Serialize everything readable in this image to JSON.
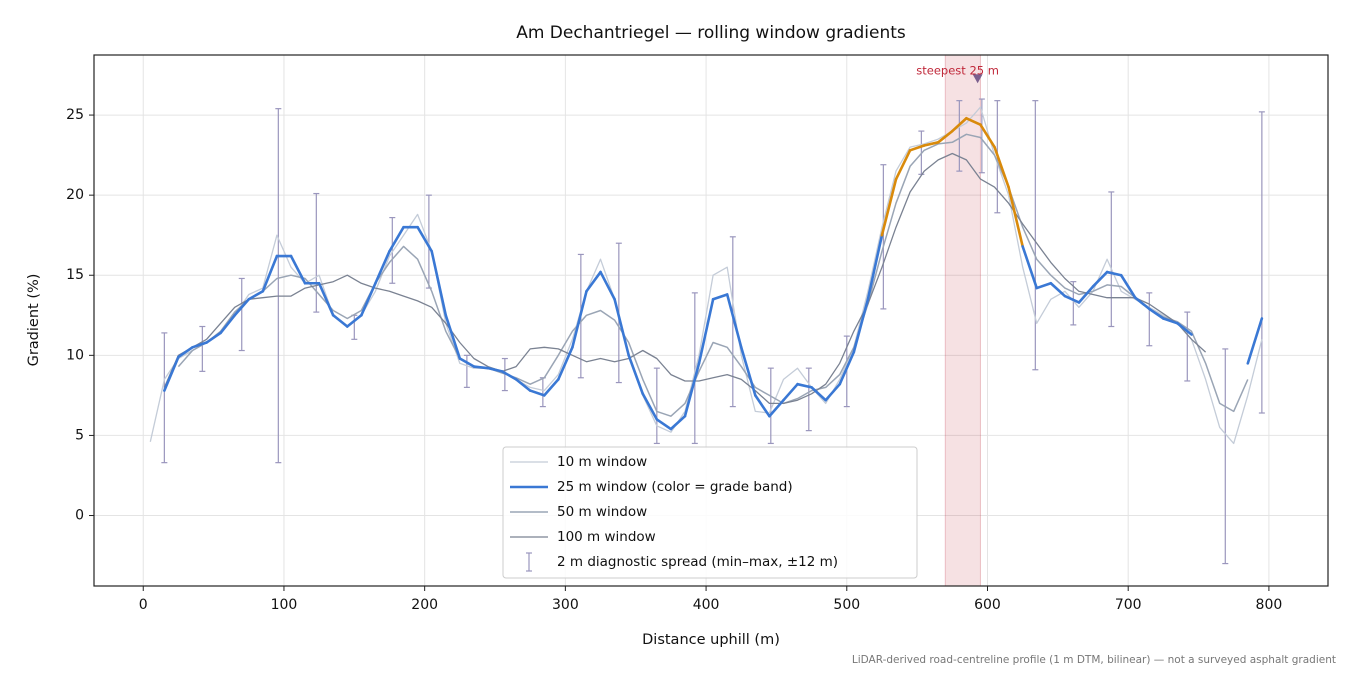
{
  "chart_data": {
    "type": "line",
    "title": "Am Dechantriegel — rolling window gradients",
    "xlabel": "Distance uphill (m)",
    "ylabel": "Gradient (%)",
    "footnote": "LiDAR-derived road-centreline profile (1 m DTM, bilinear) — not a surveyed asphalt gradient",
    "xlim": [
      -35,
      842
    ],
    "ylim": [
      -4.4,
      28.75
    ],
    "xticks": [
      0,
      100,
      200,
      300,
      400,
      500,
      600,
      700,
      800
    ],
    "yticks": [
      0,
      5,
      10,
      15,
      20,
      25
    ],
    "grid": true,
    "legend": "lower center",
    "x": [
      5,
      15,
      25,
      35,
      45,
      55,
      65,
      75,
      85,
      95,
      105,
      115,
      125,
      135,
      145,
      155,
      165,
      175,
      185,
      195,
      205,
      215,
      225,
      235,
      245,
      255,
      265,
      275,
      285,
      295,
      305,
      315,
      325,
      335,
      345,
      355,
      365,
      375,
      385,
      395,
      405,
      415,
      425,
      435,
      445,
      455,
      465,
      475,
      485,
      495,
      505,
      515,
      525,
      535,
      545,
      555,
      565,
      575,
      585,
      595,
      605,
      615,
      625,
      635,
      645,
      655,
      665,
      675,
      685,
      695,
      705,
      715,
      725,
      735,
      745,
      755,
      765,
      775,
      785,
      795
    ],
    "series": [
      {
        "name": "10 m window",
        "color": "#c4ccd8",
        "width": 1.3,
        "values": [
          4.6,
          8.5,
          9.8,
          10.3,
          10.8,
          11.5,
          12.5,
          13.8,
          14.2,
          17.5,
          15.5,
          14.5,
          15,
          12.5,
          11.8,
          12.5,
          14,
          16.2,
          17.5,
          18.8,
          16.5,
          12,
          9.5,
          9.2,
          9.2,
          9,
          8.5,
          8,
          7.8,
          8.8,
          11,
          14,
          16,
          13.5,
          10,
          7.5,
          5.6,
          5.2,
          6.5,
          10,
          15,
          15.5,
          10,
          6.5,
          6.4,
          8.5,
          9.2,
          8,
          7,
          8.5,
          10.5,
          14,
          18,
          21.5,
          23,
          23.2,
          23.5,
          24,
          24.5,
          25.5,
          22.5,
          20,
          15.5,
          12,
          13.5,
          14,
          13,
          14,
          16,
          14,
          13.5,
          13,
          12.5,
          12,
          11,
          8.5,
          5.5,
          4.5,
          7.5,
          11
        ]
      },
      {
        "name": "25 m window (color = grade band)",
        "color": "#3a78d4",
        "width": 2.6,
        "grade_bands": [
          {
            "from": 20,
            "color": "#d98a0b"
          }
        ],
        "values": [
          null,
          7.8,
          9.9,
          10.5,
          10.8,
          11.4,
          12.5,
          13.5,
          14,
          16.2,
          16.2,
          14.5,
          14.5,
          12.5,
          11.8,
          12.5,
          14.5,
          16.5,
          18,
          18,
          16.5,
          12.5,
          9.8,
          9.3,
          9.2,
          9,
          8.5,
          7.8,
          7.5,
          8.5,
          10.5,
          14,
          15.2,
          13.5,
          10,
          7.6,
          6,
          5.4,
          6.2,
          9.5,
          13.5,
          13.8,
          10.5,
          7.5,
          6.2,
          7.2,
          8.2,
          8,
          7.2,
          8.2,
          10.2,
          13.5,
          17.5,
          21,
          22.8,
          23.1,
          23.3,
          24,
          24.8,
          24.4,
          23,
          20.5,
          16.8,
          14.2,
          14.5,
          13.7,
          13.3,
          14.3,
          15.2,
          15,
          13.6,
          12.9,
          12.3,
          12,
          11.3,
          null,
          null,
          null,
          9.5,
          12.3
        ]
      },
      {
        "name": "50 m window",
        "color": "#9aa5b5",
        "width": 1.5,
        "values": [
          null,
          null,
          9.3,
          10.3,
          10.8,
          11.5,
          12.7,
          13.5,
          14,
          14.8,
          15,
          14.8,
          13.8,
          12.8,
          12.3,
          12.8,
          14.5,
          15.8,
          16.8,
          16,
          14,
          11.5,
          9.8,
          9.3,
          9.2,
          8.9,
          8.6,
          8.2,
          8.6,
          10,
          11.5,
          12.5,
          12.8,
          12.2,
          10.8,
          8.5,
          6.5,
          6.2,
          7,
          9,
          10.8,
          10.5,
          9.3,
          8,
          7.5,
          7,
          7.3,
          7.8,
          8,
          8.8,
          10.5,
          13.2,
          16.5,
          19.5,
          21.8,
          22.8,
          23.2,
          23.3,
          23.8,
          23.6,
          22.5,
          20.5,
          18,
          16,
          15,
          14.2,
          13.8,
          14,
          14.4,
          14.3,
          13.6,
          12.9,
          12.4,
          12.1,
          11.5,
          9.5,
          7,
          6.5,
          8.5,
          null
        ]
      },
      {
        "name": "100 m window",
        "color": "#7a8292",
        "width": 1.3,
        "values": [
          null,
          8,
          10,
          10.5,
          11,
          12,
          13,
          13.5,
          13.6,
          13.7,
          13.7,
          14.2,
          14.4,
          14.6,
          15,
          14.5,
          14.2,
          14,
          13.7,
          13.4,
          13,
          12,
          10.8,
          9.8,
          9.3,
          9,
          9.3,
          10.4,
          10.5,
          10.4,
          10,
          9.6,
          9.8,
          9.6,
          9.8,
          10.3,
          9.8,
          8.8,
          8.4,
          8.4,
          8.6,
          8.8,
          8.5,
          7.8,
          7,
          7,
          7.2,
          7.6,
          8.2,
          9.5,
          11.5,
          13.2,
          15.5,
          18,
          20.2,
          21.5,
          22.2,
          22.6,
          22.2,
          21,
          20.5,
          19.5,
          18.2,
          17,
          15.8,
          14.8,
          14,
          13.8,
          13.6,
          13.6,
          13.6,
          13.2,
          12.6,
          12,
          11,
          10.2,
          null,
          null,
          null,
          null
        ]
      }
    ],
    "errorbars": {
      "name": "2 m diagnostic spread (min–max, ±12 m)",
      "color": "#9a96bd",
      "x": [
        15,
        42,
        70,
        96,
        123,
        150,
        177,
        203,
        230,
        257,
        284,
        311,
        338,
        365,
        392,
        419,
        446,
        473,
        500,
        526,
        553,
        580,
        596,
        607,
        634,
        661,
        688,
        715,
        742,
        769,
        795
      ],
      "min": [
        3.3,
        9,
        10.3,
        3.3,
        12.7,
        11,
        14.5,
        14.2,
        8,
        7.8,
        6.8,
        8.6,
        8.3,
        4.5,
        4.5,
        6.8,
        4.5,
        5.3,
        6.8,
        12.9,
        21.3,
        21.5,
        21.4,
        18.9,
        9.1,
        11.9,
        11.8,
        10.6,
        8.4,
        -3,
        6.4
      ],
      "max": [
        11.4,
        11.8,
        14.8,
        25.4,
        20.1,
        12.5,
        18.6,
        20,
        10,
        9.8,
        8.6,
        16.3,
        17,
        9.2,
        13.9,
        17.4,
        9.2,
        9.2,
        11.2,
        21.9,
        24,
        25.9,
        26,
        25.9,
        25.9,
        14.6,
        20.2,
        13.9,
        12.7,
        10.4,
        25.2
      ]
    },
    "steepest": {
      "label": "steepest 25 m",
      "span": [
        570,
        595
      ],
      "marker_x": 593,
      "marker_y": 27.3,
      "color": "#c0283a"
    }
  }
}
